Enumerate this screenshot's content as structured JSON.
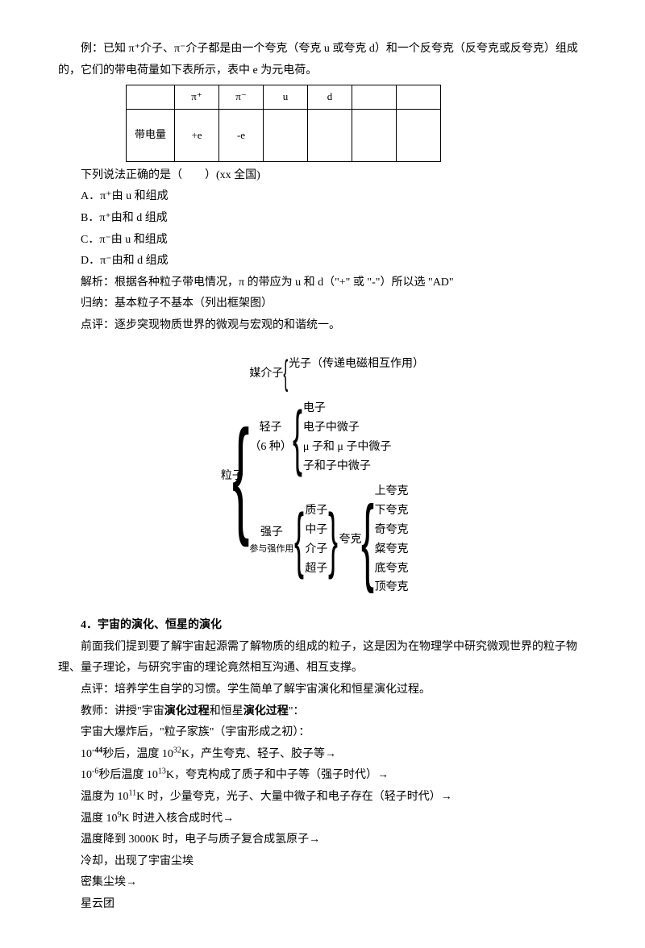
{
  "intro": "例：已知 π⁺介子、π⁻介子都是由一个夸克（夸克 u 或夸克 d）和一个反夸克（反夸克或反夸克）组成的，它们的带电荷量如下表所示，表中 e 为元电荷。",
  "table": {
    "h1": "π⁺",
    "h2": "π⁻",
    "h3": "u",
    "h4": "d",
    "rowLabel": "带电量",
    "v1": "+e",
    "v2": "-e"
  },
  "q": {
    "stem": "下列说法正确的是（　　）(xx 全国)",
    "A": "A．π⁺由 u 和组成",
    "B": "B．π⁺由和 d 组成",
    "C": "C．π⁻由 u 和组成",
    "D": "D．π⁻由和 d 组成"
  },
  "analysis": "解析：根据各种粒子带电情况，π 的带应为 u 和 d（\"+\" 或 \"-\"）所以选 \"AD\"",
  "conclude": "归纳：基本粒子不基本（列出框架图）",
  "comment1": "点评：逐步突现物质世界的微观与宏观的和谐统一。",
  "diagram": {
    "root": "粒子",
    "mediator": "媒介子",
    "photon": "光子（传递电磁相互作用）",
    "lepton": "轻子",
    "leptonNote": "（6 种）",
    "l1": "电子",
    "l2": "电子中微子",
    "l3": "μ 子和 μ 子中微子",
    "l4": "子和子中微子",
    "hadron": "强子",
    "hadronNote": "参与强作用",
    "h1": "质子",
    "h2": "中子",
    "h3": "介子",
    "h4": "超子",
    "quark": "夸克",
    "q1": "上夸克",
    "q2": "下夸克",
    "q3": "奇夸克",
    "q4": "粲夸克",
    "q5": "底夸克",
    "q6": "顶夸克"
  },
  "sec4": {
    "title": "4．宇宙的演化、恒星的演化",
    "p1": "　　前面我们提到要了解宇宙起源需了解物质的组成的粒子，这是因为在物理学中研究微观世界的粒子物理、量子理论，与研究宇宙的理论竟然相互沟通、相互支撑。",
    "p2": "点评：培养学生自学的习惯。学生简单了解宇宙演化和恒星演化过程。",
    "p3a": "教师：讲授\"宇宙",
    "p3b": "演化过程",
    "p3c": "和恒星",
    "p3d": "演化过程",
    "p3e": "\"：",
    "p4": "宇宙大爆炸后，\"粒子家族\"（宇宙形成之初）：",
    "l1a": "10",
    "l1exp": "-44",
    "l1b": "秒后，温度 10",
    "l1exp2": "32",
    "l1c": "K，产生夸克、轻子、胶子等→",
    "l2a": "10",
    "l2exp": "-6",
    "l2b": "秒后温度 10",
    "l2exp2": "13",
    "l2c": "K，夸克构成了质子和中子等（强子时代）→",
    "l3a": "温度为 10",
    "l3exp": "11",
    "l3b": "K 时，少量夸克，光子、大量中微子和电子存在（轻子时代）→",
    "l4a": "温度 10",
    "l4exp": "9",
    "l4b": "K 时进入核合成时代→",
    "p5": "温度降到 3000K 时，电子与质子复合成氢原子→",
    "p6": "冷却，出现了宇宙尘埃",
    "p7": "密集尘埃→",
    "p8": "星云团"
  }
}
